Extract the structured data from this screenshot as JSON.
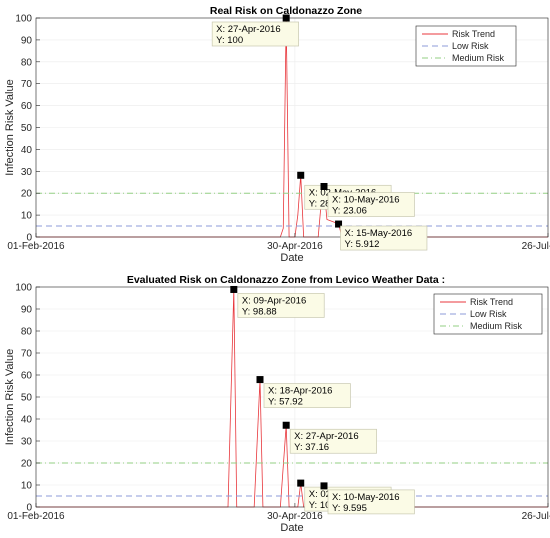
{
  "chart_data": [
    {
      "type": "line",
      "title": "Real Risk on Caldonazzo Zone",
      "xlabel": "Date",
      "ylabel": "Infection Risk Value",
      "xlim": [
        "2016-02-01",
        "2016-07-26"
      ],
      "x_tick_labels": [
        "01-Feb-2016",
        "30-Apr-2016",
        "26-Jul-2016"
      ],
      "ylim": [
        0,
        100
      ],
      "y_ticks": [
        0,
        10,
        20,
        30,
        40,
        50,
        60,
        70,
        80,
        90,
        100
      ],
      "grid": true,
      "legend_position": "top-right",
      "series": [
        {
          "name": "Risk Trend",
          "color": "#e8373c",
          "style": "solid",
          "points": [
            [
              "2016-02-01",
              0
            ],
            [
              "2016-04-25",
              0
            ],
            [
              "2016-04-26",
              4
            ],
            [
              "2016-04-27",
              100
            ],
            [
              "2016-04-28",
              0
            ],
            [
              "2016-04-30",
              0
            ],
            [
              "2016-05-01",
              10
            ],
            [
              "2016-05-02",
              28.18
            ],
            [
              "2016-05-03",
              0
            ],
            [
              "2016-05-08",
              0
            ],
            [
              "2016-05-09",
              15
            ],
            [
              "2016-05-10",
              23.06
            ],
            [
              "2016-05-11",
              8
            ],
            [
              "2016-05-13",
              7
            ],
            [
              "2016-05-14",
              6.5
            ],
            [
              "2016-05-15",
              5.912
            ],
            [
              "2016-05-16",
              1
            ],
            [
              "2016-05-18",
              0
            ],
            [
              "2016-07-26",
              0
            ]
          ]
        },
        {
          "name": "Low Risk",
          "color": "#8d9bd8",
          "style": "dashed",
          "points": [
            [
              "2016-02-01",
              5
            ],
            [
              "2016-07-26",
              5
            ]
          ]
        },
        {
          "name": "Medium Risk",
          "color": "#93cf83",
          "style": "dashdot",
          "points": [
            [
              "2016-02-01",
              20
            ],
            [
              "2016-07-26",
              20
            ]
          ]
        }
      ],
      "annotations": [
        {
          "x": "2016-04-27",
          "y": 100,
          "x_text": "X: 27-Apr-2016",
          "y_text": "Y: 100"
        },
        {
          "x": "2016-05-02",
          "y": 28.18,
          "x_text": "X: 02-May-2016",
          "y_text": "Y: 28.18"
        },
        {
          "x": "2016-05-10",
          "y": 23.06,
          "x_text": "X: 10-May-2016",
          "y_text": "Y: 23.06"
        },
        {
          "x": "2016-05-15",
          "y": 5.912,
          "x_text": "X: 15-May-2016",
          "y_text": "Y: 5.912"
        }
      ]
    },
    {
      "type": "line",
      "title": "Evaluated Risk on Caldonazzo Zone from Levico Weather Data :",
      "xlabel": "Date",
      "ylabel": "Infection Risk Value",
      "xlim": [
        "2016-02-01",
        "2016-07-26"
      ],
      "x_tick_labels": [
        "01-Feb-2016",
        "30-Apr-2016",
        "26-Jul-2016"
      ],
      "ylim": [
        0,
        100
      ],
      "y_ticks": [
        0,
        10,
        20,
        30,
        40,
        50,
        60,
        70,
        80,
        90,
        100
      ],
      "grid": true,
      "legend_position": "top-right",
      "series": [
        {
          "name": "Risk Trend",
          "color": "#e8373c",
          "style": "solid",
          "points": [
            [
              "2016-02-01",
              0
            ],
            [
              "2016-04-07",
              0
            ],
            [
              "2016-04-09",
              98.88
            ],
            [
              "2016-04-10",
              0
            ],
            [
              "2016-04-16",
              0
            ],
            [
              "2016-04-18",
              57.92
            ],
            [
              "2016-04-19",
              0
            ],
            [
              "2016-04-25",
              0
            ],
            [
              "2016-04-27",
              37.16
            ],
            [
              "2016-04-28",
              0
            ],
            [
              "2016-05-01",
              0
            ],
            [
              "2016-05-02",
              10.86
            ],
            [
              "2016-05-03",
              0
            ],
            [
              "2016-05-09",
              0
            ],
            [
              "2016-05-10",
              9.595
            ],
            [
              "2016-05-11",
              0
            ],
            [
              "2016-07-26",
              0
            ]
          ]
        },
        {
          "name": "Low Risk",
          "color": "#8d9bd8",
          "style": "dashed",
          "points": [
            [
              "2016-02-01",
              5
            ],
            [
              "2016-07-26",
              5
            ]
          ]
        },
        {
          "name": "Medium Risk",
          "color": "#93cf83",
          "style": "dashdot",
          "points": [
            [
              "2016-02-01",
              20
            ],
            [
              "2016-07-26",
              20
            ]
          ]
        }
      ],
      "annotations": [
        {
          "x": "2016-04-09",
          "y": 98.88,
          "x_text": "X: 09-Apr-2016",
          "y_text": "Y: 98.88"
        },
        {
          "x": "2016-04-18",
          "y": 57.92,
          "x_text": "X: 18-Apr-2016",
          "y_text": "Y: 57.92"
        },
        {
          "x": "2016-04-27",
          "y": 37.16,
          "x_text": "X: 27-Apr-2016",
          "y_text": "Y: 37.16"
        },
        {
          "x": "2016-05-02",
          "y": 10.86,
          "x_text": "X: 02-May-2016",
          "y_text": "Y: 10.86"
        },
        {
          "x": "2016-05-10",
          "y": 9.595,
          "x_text": "X: 10-May-2016",
          "y_text": "Y: 9.595"
        }
      ]
    }
  ]
}
